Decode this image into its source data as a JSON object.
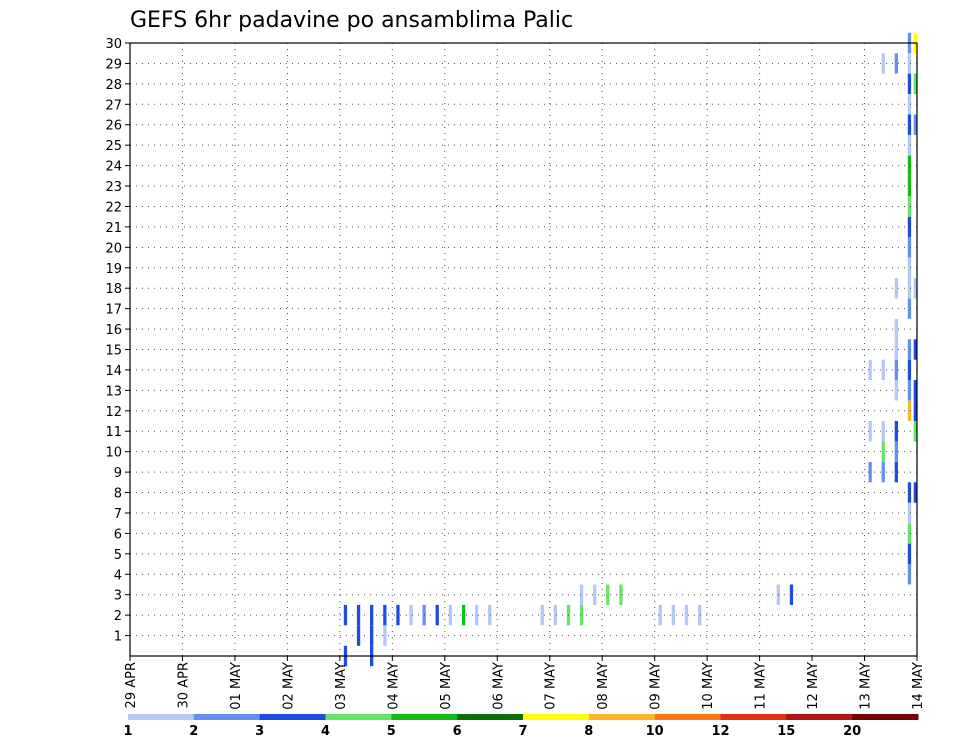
{
  "chart_data": {
    "type": "heatmap",
    "title": "GEFS 6hr padavine po ansamblima Palic",
    "xlabel": "",
    "ylabel": "",
    "x_ticks": [
      "29 APR",
      "30 APR",
      "01 MAY",
      "02 MAY",
      "03 MAY",
      "04 MAY",
      "05 MAY",
      "06 MAY",
      "07 MAY",
      "08 MAY",
      "09 MAY",
      "10 MAY",
      "11 MAY",
      "12 MAY",
      "13 MAY",
      "14 MAY"
    ],
    "y_ticks": [
      "1",
      "2",
      "3",
      "4",
      "5",
      "6",
      "7",
      "8",
      "9",
      "10",
      "11",
      "12",
      "13",
      "14",
      "15",
      "16",
      "17",
      "18",
      "19",
      "20",
      "21",
      "22",
      "23",
      "24",
      "25",
      "26",
      "27",
      "28",
      "29",
      "30"
    ],
    "xlim": [
      0,
      60
    ],
    "ylim": [
      0,
      30
    ],
    "grid": true,
    "legend": "bottom colorbar",
    "colorbar": {
      "labels": [
        "1",
        "2",
        "3",
        "4",
        "5",
        "6",
        "7",
        "8",
        "10",
        "12",
        "15",
        "20"
      ],
      "colors": [
        "#b4c8f5",
        "#6490f0",
        "#1e4be1",
        "#64e664",
        "#14be14",
        "#0a6e0a",
        "#ffff00",
        "#ffb428",
        "#ff7814",
        "#e13214",
        "#b41414",
        "#780000"
      ]
    },
    "palette": [
      "#b4c8f5",
      "#6490f0",
      "#1e4be1",
      "#64e664",
      "#14be14",
      "#0a6e0a",
      "#ffff00",
      "#ffb428",
      "#ff7814",
      "#e13214",
      "#b41414"
    ],
    "cells": [
      [
        16.3,
        0,
        2
      ],
      [
        18.3,
        0,
        2
      ],
      [
        18.3,
        1,
        0
      ],
      [
        19.3,
        1,
        0
      ],
      [
        17.3,
        1,
        2
      ],
      [
        18.3,
        1,
        2
      ],
      [
        16.3,
        2,
        2
      ],
      [
        17.3,
        2,
        2
      ],
      [
        18.3,
        2,
        2
      ],
      [
        19.3,
        2,
        2
      ],
      [
        20.3,
        2,
        2
      ],
      [
        21.3,
        2,
        0
      ],
      [
        22.3,
        2,
        1
      ],
      [
        23.3,
        2,
        2
      ],
      [
        24.3,
        2,
        0
      ],
      [
        25.3,
        2,
        4
      ],
      [
        26.3,
        2,
        0
      ],
      [
        27.3,
        2,
        0
      ],
      [
        31.3,
        2,
        0
      ],
      [
        32.3,
        2,
        0
      ],
      [
        33.3,
        2,
        3
      ],
      [
        34.3,
        2,
        3
      ],
      [
        40.3,
        2,
        0
      ],
      [
        41.3,
        2,
        0
      ],
      [
        42.3,
        2,
        0
      ],
      [
        43.3,
        2,
        0
      ],
      [
        34.3,
        3,
        0
      ],
      [
        35.3,
        3,
        0
      ],
      [
        36.3,
        3,
        3
      ],
      [
        37.3,
        3,
        3
      ],
      [
        49.3,
        3,
        0
      ],
      [
        50.3,
        3,
        2
      ],
      [
        59.3,
        4,
        1
      ],
      [
        59.3,
        5,
        2
      ],
      [
        59.3,
        6,
        3
      ],
      [
        59.3,
        7,
        0
      ],
      [
        59.3,
        8,
        2
      ],
      [
        60.3,
        8,
        2
      ],
      [
        58.3,
        9,
        2
      ],
      [
        56.3,
        9,
        1
      ],
      [
        57.3,
        9,
        1
      ],
      [
        58.3,
        10,
        1
      ],
      [
        57.3,
        10,
        3
      ],
      [
        56.3,
        11,
        0
      ],
      [
        57.3,
        11,
        0
      ],
      [
        58.3,
        11,
        2
      ],
      [
        60.3,
        11,
        3
      ],
      [
        59.3,
        12,
        7
      ],
      [
        60.3,
        12,
        2
      ],
      [
        58.3,
        13,
        0
      ],
      [
        59.3,
        13,
        1
      ],
      [
        60.3,
        13,
        2
      ],
      [
        56.3,
        14,
        0
      ],
      [
        57.3,
        14,
        0
      ],
      [
        58.3,
        14,
        1
      ],
      [
        59.3,
        14,
        2
      ],
      [
        58.3,
        15,
        0
      ],
      [
        59.3,
        15,
        1
      ],
      [
        60.3,
        15,
        2
      ],
      [
        58.3,
        16,
        0
      ],
      [
        59.3,
        17,
        1
      ],
      [
        58.3,
        18,
        0
      ],
      [
        59.3,
        18,
        0
      ],
      [
        60.3,
        18,
        0
      ],
      [
        59.3,
        19,
        0
      ],
      [
        59.3,
        20,
        1
      ],
      [
        59.3,
        21,
        2
      ],
      [
        59.3,
        22,
        3
      ],
      [
        59.3,
        23,
        4
      ],
      [
        59.3,
        24,
        4
      ],
      [
        59.3,
        25,
        0
      ],
      [
        59.3,
        26,
        2
      ],
      [
        60.3,
        26,
        1
      ],
      [
        59.3,
        27,
        0
      ],
      [
        59.3,
        28,
        2
      ],
      [
        60.3,
        28,
        3
      ],
      [
        57.3,
        29,
        0
      ],
      [
        58.3,
        29,
        1
      ],
      [
        59.3,
        29,
        0
      ],
      [
        59.3,
        30,
        1
      ],
      [
        60.3,
        30,
        6
      ]
    ]
  }
}
